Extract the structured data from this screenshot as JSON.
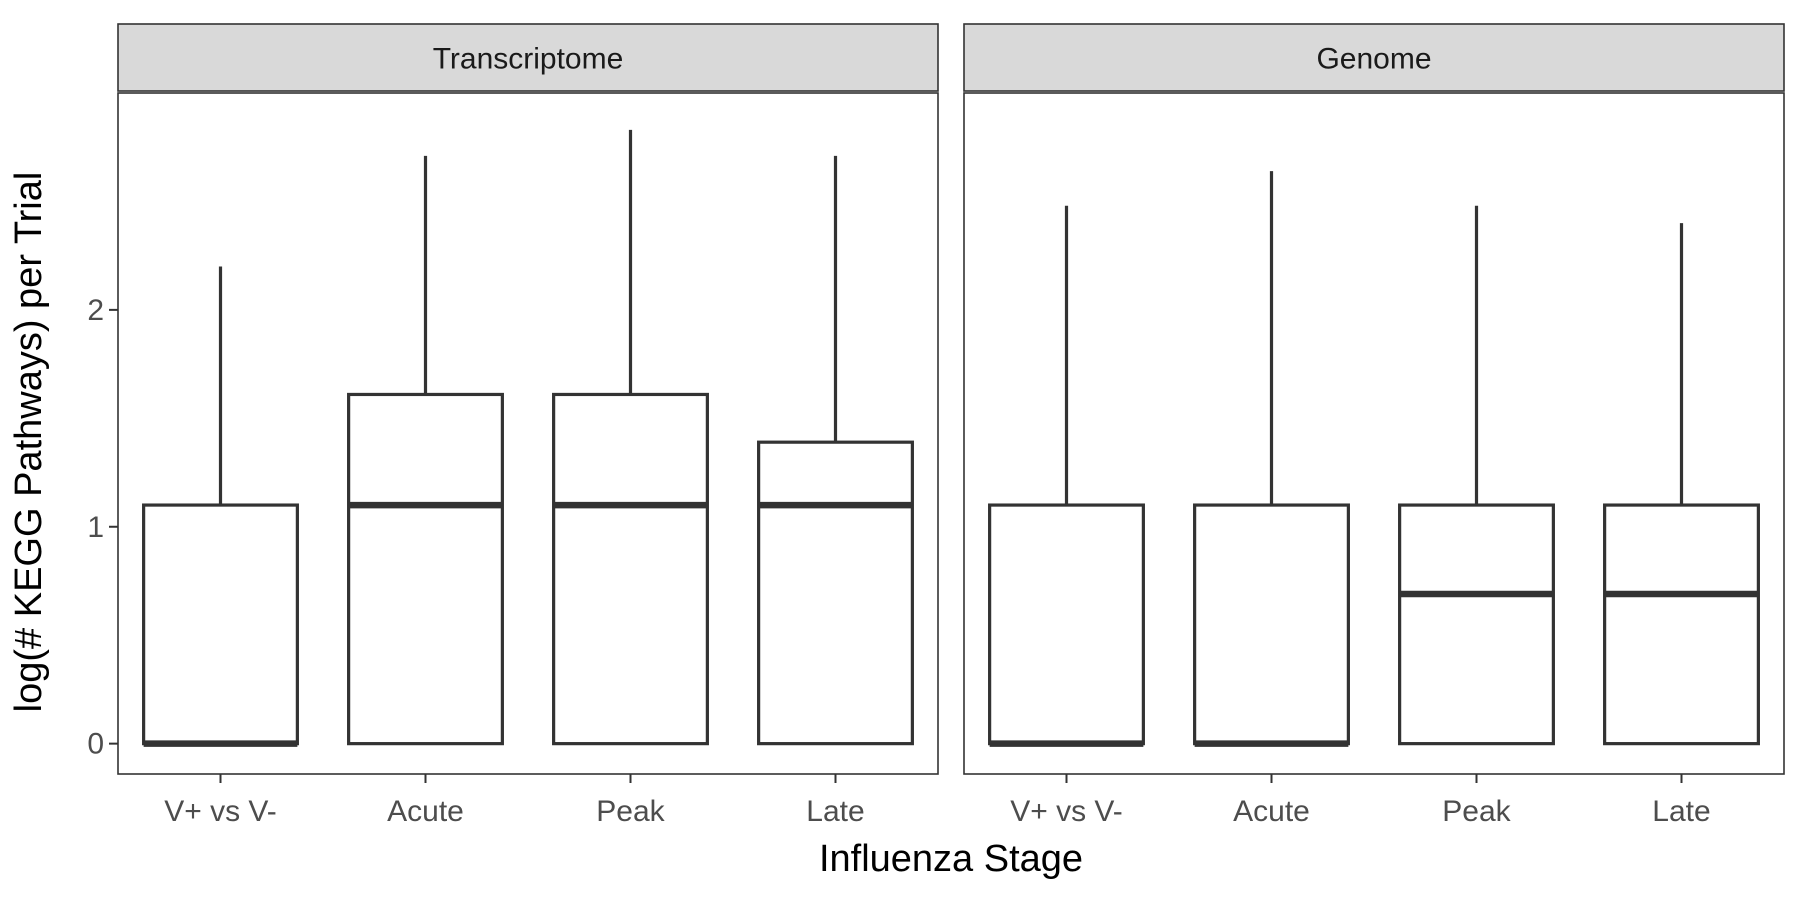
{
  "chart_data": {
    "type": "boxplot",
    "xlabel": "Influenza Stage",
    "ylabel": "log(# KEGG Pathways) per Trial",
    "ylim": [
      -0.14,
      3.0
    ],
    "yticks": [
      0,
      1,
      2
    ],
    "categories": [
      "V+ vs V-",
      "Acute",
      "Peak",
      "Late"
    ],
    "grid": false,
    "panels": [
      {
        "title": "Transcriptome",
        "boxes": [
          {
            "category": "V+ vs V-",
            "lower_whisker": 0,
            "q1": 0,
            "median": 0,
            "q3": 1.1,
            "upper_whisker": 2.2
          },
          {
            "category": "Acute",
            "lower_whisker": 0,
            "q1": 0,
            "median": 1.1,
            "q3": 1.61,
            "upper_whisker": 2.71
          },
          {
            "category": "Peak",
            "lower_whisker": 0,
            "q1": 0,
            "median": 1.1,
            "q3": 1.61,
            "upper_whisker": 2.83
          },
          {
            "category": "Late",
            "lower_whisker": 0,
            "q1": 0,
            "median": 1.1,
            "q3": 1.39,
            "upper_whisker": 2.71
          }
        ]
      },
      {
        "title": "Genome",
        "boxes": [
          {
            "category": "V+ vs V-",
            "lower_whisker": 0,
            "q1": 0,
            "median": 0,
            "q3": 1.1,
            "upper_whisker": 2.48
          },
          {
            "category": "Acute",
            "lower_whisker": 0,
            "q1": 0,
            "median": 0,
            "q3": 1.1,
            "upper_whisker": 2.64
          },
          {
            "category": "Peak",
            "lower_whisker": 0,
            "q1": 0,
            "median": 0.69,
            "q3": 1.1,
            "upper_whisker": 2.48
          },
          {
            "category": "Late",
            "lower_whisker": 0,
            "q1": 0,
            "median": 0.69,
            "q3": 1.1,
            "upper_whisker": 2.4
          }
        ]
      }
    ]
  }
}
